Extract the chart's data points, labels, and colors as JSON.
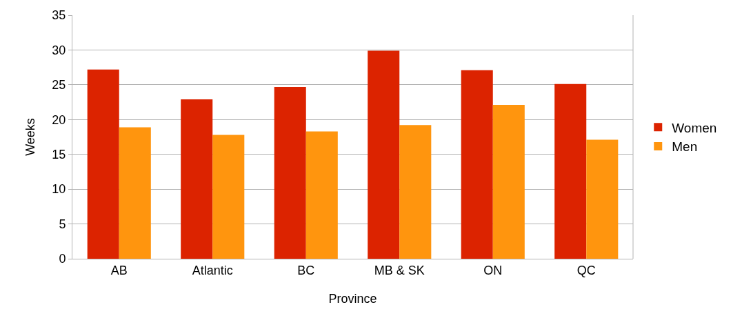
{
  "chart_data": {
    "type": "bar",
    "xlabel": "Province",
    "ylabel": "Weeks",
    "categories": [
      "AB",
      "Atlantic",
      "BC",
      "MB & SK",
      "ON",
      "QC"
    ],
    "series": [
      {
        "name": "Women",
        "color": "#dc2300",
        "values": [
          27.2,
          22.9,
          24.7,
          29.9,
          27.1,
          25.1
        ]
      },
      {
        "name": "Men",
        "color": "#ff950e",
        "values": [
          18.9,
          17.8,
          18.3,
          19.2,
          22.1,
          17.1
        ]
      }
    ],
    "ylim": [
      0,
      35
    ],
    "yticks": [
      0,
      5,
      10,
      15,
      20,
      25,
      30,
      35
    ],
    "grid": "y",
    "legend": "right"
  }
}
